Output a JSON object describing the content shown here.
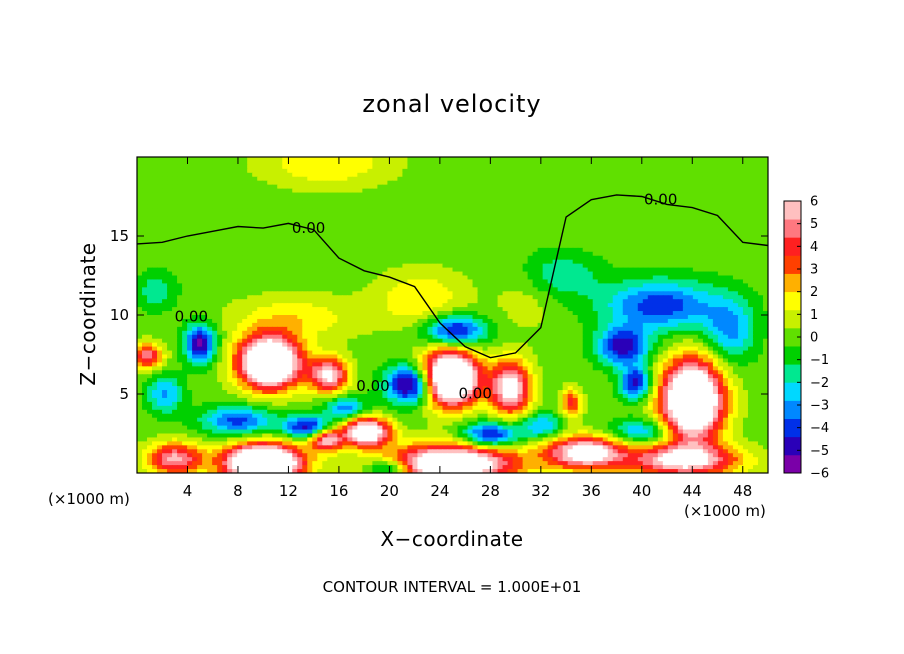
{
  "chart_data": {
    "type": "heatmap",
    "title": "zonal velocity",
    "xlabel": "X−coordinate",
    "ylabel": "Z−coordinate",
    "x_unit_label": "(×1000 m)",
    "z_unit_label": "(×1000 m)",
    "note": "CONTOUR INTERVAL = 1.000E+01",
    "xlim": [
      0,
      50
    ],
    "ylim": [
      0,
      20
    ],
    "x_ticks": [
      4,
      8,
      12,
      16,
      20,
      24,
      28,
      32,
      36,
      40,
      44,
      48
    ],
    "x_tick_labels": [
      "4",
      "8",
      "12",
      "16",
      "20",
      "24",
      "28",
      "32",
      "36",
      "40",
      "44",
      "48"
    ],
    "y_ticks": [
      5,
      10,
      15
    ],
    "y_tick_labels": [
      "5",
      "10",
      "15"
    ],
    "colorbar": {
      "min": -6,
      "max": 6,
      "ticks": [
        6,
        5,
        4,
        3,
        2,
        1,
        0,
        -1,
        -2,
        -3,
        -4,
        -5,
        -6
      ],
      "tick_labels": [
        "6",
        "5",
        "4",
        "3",
        "2",
        "1",
        "0",
        "−1",
        "−2",
        "−3",
        "−4",
        "−5",
        "−6"
      ],
      "colors": [
        "#7a00a8",
        "#2a00b8",
        "#0030e8",
        "#0088ff",
        "#00d8ff",
        "#00e890",
        "#00d000",
        "#60e000",
        "#c8f000",
        "#ffff00",
        "#ffb000",
        "#ff4000",
        "#ff2020",
        "#ff7880",
        "#ffc0c0"
      ],
      "out_of_range_color": "#ffffff"
    },
    "contour_labels": [
      {
        "text": "0.00",
        "x": 13.6,
        "z": 15.2
      },
      {
        "text": "0.00",
        "x": 41.5,
        "z": 17.0
      },
      {
        "text": "0.00",
        "x": 4.3,
        "z": 9.6
      },
      {
        "text": "0.00",
        "x": 18.7,
        "z": 5.2
      },
      {
        "text": "0.00",
        "x": 26.8,
        "z": 4.7
      }
    ],
    "zero_contour_x": [
      0,
      2,
      4,
      6,
      8,
      10,
      12,
      14,
      16,
      18,
      20,
      22,
      24,
      26,
      28,
      30,
      32,
      34,
      36,
      38,
      40,
      42,
      44,
      46,
      48,
      50
    ],
    "zero_contour_z": [
      14.5,
      14.6,
      15.0,
      15.3,
      15.6,
      15.5,
      15.8,
      15.4,
      13.6,
      12.8,
      12.4,
      11.8,
      9.5,
      8.0,
      7.3,
      7.6,
      9.2,
      16.2,
      17.3,
      17.6,
      17.5,
      17.0,
      16.8,
      16.3,
      14.6,
      14.4
    ],
    "features": [
      {
        "x": 10.5,
        "z": 7.0,
        "sx": 2.4,
        "sz": 1.6,
        "v": 11.5
      },
      {
        "x": 15.2,
        "z": 6.2,
        "sx": 1.5,
        "sz": 1.1,
        "v": 6.5
      },
      {
        "x": 18.2,
        "z": 2.6,
        "sx": 1.8,
        "sz": 0.9,
        "v": 8.5
      },
      {
        "x": 15.0,
        "z": 2.1,
        "sx": 1.3,
        "sz": 0.7,
        "v": 6.0
      },
      {
        "x": 10.0,
        "z": 0.6,
        "sx": 3.0,
        "sz": 1.2,
        "v": 12.0
      },
      {
        "x": 3.0,
        "z": 0.9,
        "sx": 2.2,
        "sz": 1.0,
        "v": 5.5
      },
      {
        "x": 0.8,
        "z": 7.4,
        "sx": 1.2,
        "sz": 0.8,
        "v": 5.0
      },
      {
        "x": 24.8,
        "z": 6.0,
        "sx": 2.2,
        "sz": 1.7,
        "v": 12.0
      },
      {
        "x": 29.6,
        "z": 5.4,
        "sx": 1.6,
        "sz": 1.7,
        "v": 7.0
      },
      {
        "x": 25.0,
        "z": 0.6,
        "sx": 5.0,
        "sz": 1.2,
        "v": 9.0
      },
      {
        "x": 35.5,
        "z": 1.3,
        "sx": 3.0,
        "sz": 1.0,
        "v": 7.5
      },
      {
        "x": 44.0,
        "z": 4.6,
        "sx": 2.4,
        "sz": 2.5,
        "v": 11.0
      },
      {
        "x": 43.2,
        "z": 0.8,
        "sx": 4.5,
        "sz": 1.0,
        "v": 6.5
      },
      {
        "x": 34.4,
        "z": 4.4,
        "sx": 0.8,
        "sz": 0.9,
        "v": 4.0
      },
      {
        "x": 22.5,
        "z": 11.0,
        "sx": 3.5,
        "sz": 1.8,
        "v": 2.0
      },
      {
        "x": 12.5,
        "z": 9.8,
        "sx": 5.0,
        "sz": 1.4,
        "v": 1.8
      },
      {
        "x": 15.0,
        "z": 19.6,
        "sx": 5.0,
        "sz": 1.5,
        "v": 2.0
      },
      {
        "x": 31.0,
        "z": 11.0,
        "sx": 2.6,
        "sz": 2.0,
        "v": 0.9
      },
      {
        "x": 5.0,
        "z": 8.2,
        "sx": 1.2,
        "sz": 1.2,
        "v": -5.5
      },
      {
        "x": 2.2,
        "z": 5.0,
        "sx": 1.4,
        "sz": 1.2,
        "v": -3.0
      },
      {
        "x": 21.8,
        "z": 5.6,
        "sx": 2.0,
        "sz": 1.2,
        "v": -6.5
      },
      {
        "x": 25.2,
        "z": 9.0,
        "sx": 2.4,
        "sz": 1.0,
        "v": -5.0
      },
      {
        "x": 8.0,
        "z": 3.3,
        "sx": 2.8,
        "sz": 0.9,
        "v": -4.0
      },
      {
        "x": 13.5,
        "z": 2.9,
        "sx": 1.8,
        "sz": 0.7,
        "v": -5.0
      },
      {
        "x": 16.5,
        "z": 4.1,
        "sx": 1.6,
        "sz": 0.7,
        "v": -3.5
      },
      {
        "x": 28.0,
        "z": 2.4,
        "sx": 2.2,
        "sz": 0.8,
        "v": -5.0
      },
      {
        "x": 41.5,
        "z": 10.6,
        "sx": 4.5,
        "sz": 1.6,
        "v": -4.2
      },
      {
        "x": 38.5,
        "z": 8.0,
        "sx": 2.0,
        "sz": 1.2,
        "v": -5.0
      },
      {
        "x": 39.5,
        "z": 5.7,
        "sx": 1.2,
        "sz": 1.0,
        "v": -5.0
      },
      {
        "x": 47.0,
        "z": 9.0,
        "sx": 2.0,
        "sz": 2.0,
        "v": -3.0
      },
      {
        "x": 33.5,
        "z": 12.5,
        "sx": 3.0,
        "sz": 1.5,
        "v": -2.0
      },
      {
        "x": 40.0,
        "z": 2.6,
        "sx": 2.4,
        "sz": 0.8,
        "v": -3.0
      },
      {
        "x": 32.0,
        "z": 3.0,
        "sx": 1.6,
        "sz": 0.8,
        "v": -3.0
      },
      {
        "x": 1.5,
        "z": 11.5,
        "sx": 1.6,
        "sz": 1.2,
        "v": -1.8
      },
      {
        "x": 20.0,
        "z": 0.3,
        "sx": 1.6,
        "sz": 0.6,
        "v": -4.0
      }
    ]
  }
}
